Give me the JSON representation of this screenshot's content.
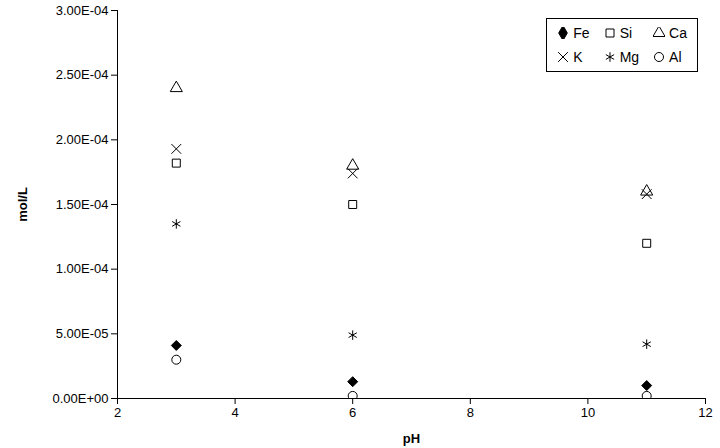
{
  "chart_data": {
    "type": "scatter",
    "x_label": "pH",
    "y_label": "mol/L",
    "x": [
      3,
      6,
      11
    ],
    "xlim": [
      2,
      12
    ],
    "xticks": [
      2,
      4,
      6,
      8,
      10,
      12
    ],
    "ylim": [
      0,
      0.0003
    ],
    "yticks": [
      {
        "value": 0,
        "label": "0.00E+00"
      },
      {
        "value": 5e-05,
        "label": "5.00E-05"
      },
      {
        "value": 0.0001,
        "label": "1.00E-04"
      },
      {
        "value": 0.00015,
        "label": "1.50E-04"
      },
      {
        "value": 0.0002,
        "label": "2.00E-04"
      },
      {
        "value": 0.00025,
        "label": "2.50E-04"
      },
      {
        "value": 0.0003,
        "label": "3.00E-04"
      }
    ],
    "grid": false,
    "legend": "top-right",
    "series": [
      {
        "name": "Fe",
        "color": "#000000",
        "marker": "filled_diamond",
        "values": [
          4.1e-05,
          1.3e-05,
          1e-05
        ]
      },
      {
        "name": "Si",
        "color": "#000000",
        "marker": "square",
        "values": [
          0.000182,
          0.00015,
          0.00012
        ]
      },
      {
        "name": "Ca",
        "color": "#000000",
        "marker": "triangle",
        "values": [
          0.00024,
          0.00018,
          0.00016
        ]
      },
      {
        "name": "K",
        "color": "#000000",
        "marker": "x",
        "values": [
          0.000193,
          0.000174,
          0.000158
        ]
      },
      {
        "name": "Mg",
        "color": "#000000",
        "marker": "asterisk",
        "values": [
          0.000135,
          4.9e-05,
          4.2e-05
        ]
      },
      {
        "name": "Al",
        "color": "#000000",
        "marker": "circle",
        "values": [
          3e-05,
          2e-06,
          2e-06
        ]
      }
    ]
  }
}
